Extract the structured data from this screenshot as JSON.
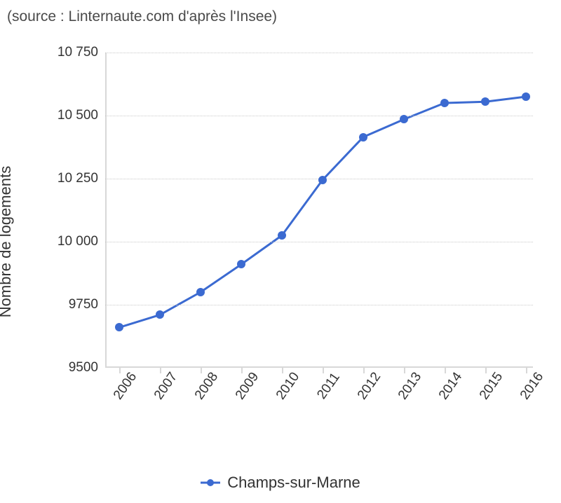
{
  "source_text": "(source : Linternaute.com d'après l'Insee)",
  "chart": {
    "type": "line",
    "ylabel": "Nombre de logements",
    "title_fontsize": 21,
    "label_fontsize": 22,
    "tick_fontsize": 19,
    "background_color": "#ffffff",
    "grid_color": "#c9c9c9",
    "axis_color": "#d8d8d8",
    "text_color": "#333333",
    "line_width": 3,
    "marker_size": 12,
    "ylim": [
      9500,
      10750
    ],
    "yticks": [
      9500,
      9750,
      10000,
      10250,
      10500,
      10750
    ],
    "ytick_labels": [
      "9500",
      "9750",
      "10 000",
      "10 250",
      "10 500",
      "10 750"
    ],
    "xticks": [
      "2006",
      "2007",
      "2008",
      "2009",
      "2010",
      "2011",
      "2012",
      "2013",
      "2014",
      "2015",
      "2016"
    ],
    "series": [
      {
        "name": "Champs-sur-Marne",
        "color": "#3b6ad1",
        "marker_style": "circle",
        "x": [
          "2006",
          "2007",
          "2008",
          "2009",
          "2010",
          "2011",
          "2012",
          "2013",
          "2014",
          "2015",
          "2016"
        ],
        "y": [
          9660,
          9710,
          9800,
          9910,
          10025,
          10245,
          10415,
          10485,
          10550,
          10555,
          10575
        ]
      }
    ],
    "legend_label": "Champs-sur-Marne"
  }
}
